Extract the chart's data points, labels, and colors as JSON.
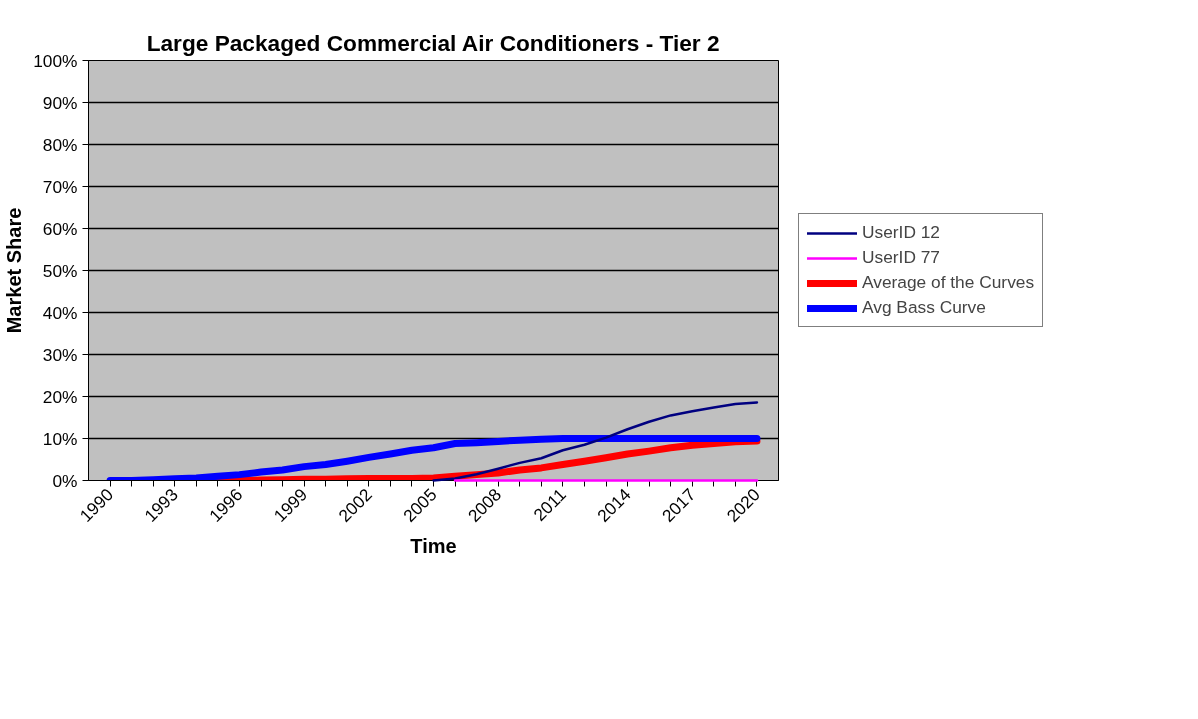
{
  "chart_data": {
    "type": "line",
    "title": "Large Packaged Commercial Air Conditioners - Tier 2",
    "xlabel": "Time",
    "ylabel": "Market Share",
    "categories": [
      "1990",
      null,
      null,
      "1993",
      null,
      null,
      "1996",
      null,
      null,
      "1999",
      null,
      null,
      "2002",
      null,
      null,
      "2005",
      null,
      null,
      "2008",
      null,
      null,
      "2011",
      null,
      null,
      "2014",
      null,
      null,
      "2017",
      null,
      null,
      "2020"
    ],
    "ylim": [
      0,
      100
    ],
    "yticks": [
      {
        "value": 0,
        "label": "0%"
      },
      {
        "value": 10,
        "label": "10%"
      },
      {
        "value": 20,
        "label": "20%"
      },
      {
        "value": 30,
        "label": "30%"
      },
      {
        "value": 40,
        "label": "40%"
      },
      {
        "value": 50,
        "label": "50%"
      },
      {
        "value": 60,
        "label": "60%"
      },
      {
        "value": 70,
        "label": "70%"
      },
      {
        "value": 80,
        "label": "80%"
      },
      {
        "value": 90,
        "label": "90%"
      },
      {
        "value": 100,
        "label": "100%"
      }
    ],
    "grid": "y",
    "legend": "right",
    "marker": "none",
    "line_style": "solid",
    "series": [
      {
        "name": "UserID 12",
        "color": "#000080",
        "values": [
          null,
          null,
          null,
          null,
          null,
          null,
          null,
          null,
          null,
          null,
          null,
          null,
          null,
          null,
          null,
          0,
          0.5,
          1.5,
          2.8,
          4.2,
          5.3,
          7.2,
          8.5,
          10.2,
          12.2,
          14.0,
          15.5,
          16.5,
          17.4,
          18.2,
          18.6
        ]
      },
      {
        "name": "UserID 77",
        "color": "#ff00ff",
        "values": [
          null,
          null,
          null,
          null,
          null,
          null,
          null,
          null,
          null,
          null,
          null,
          null,
          null,
          null,
          null,
          null,
          0,
          0,
          0,
          0,
          0,
          0,
          0,
          0,
          0,
          0,
          0,
          0,
          0,
          0,
          0
        ]
      },
      {
        "name": "Average of the Curves",
        "color": "#ff0000",
        "values": [
          null,
          null,
          null,
          null,
          0,
          0,
          0,
          0.1,
          0.2,
          0.3,
          0.3,
          0.4,
          0.5,
          0.5,
          0.5,
          0.6,
          1.0,
          1.4,
          1.8,
          2.5,
          3.0,
          3.8,
          4.6,
          5.4,
          6.3,
          7.0,
          7.8,
          8.4,
          8.8,
          9.2,
          9.4
        ]
      },
      {
        "name": "Avg Bass Curve",
        "color": "#0000ff",
        "values": [
          0,
          0,
          0.2,
          0.4,
          0.6,
          1.0,
          1.4,
          2.0,
          2.5,
          3.3,
          3.8,
          4.6,
          5.5,
          6.3,
          7.2,
          7.8,
          8.8,
          9.0,
          9.3,
          9.6,
          9.8,
          10,
          10,
          10,
          10,
          10,
          10,
          10,
          10,
          10,
          10
        ]
      }
    ]
  }
}
